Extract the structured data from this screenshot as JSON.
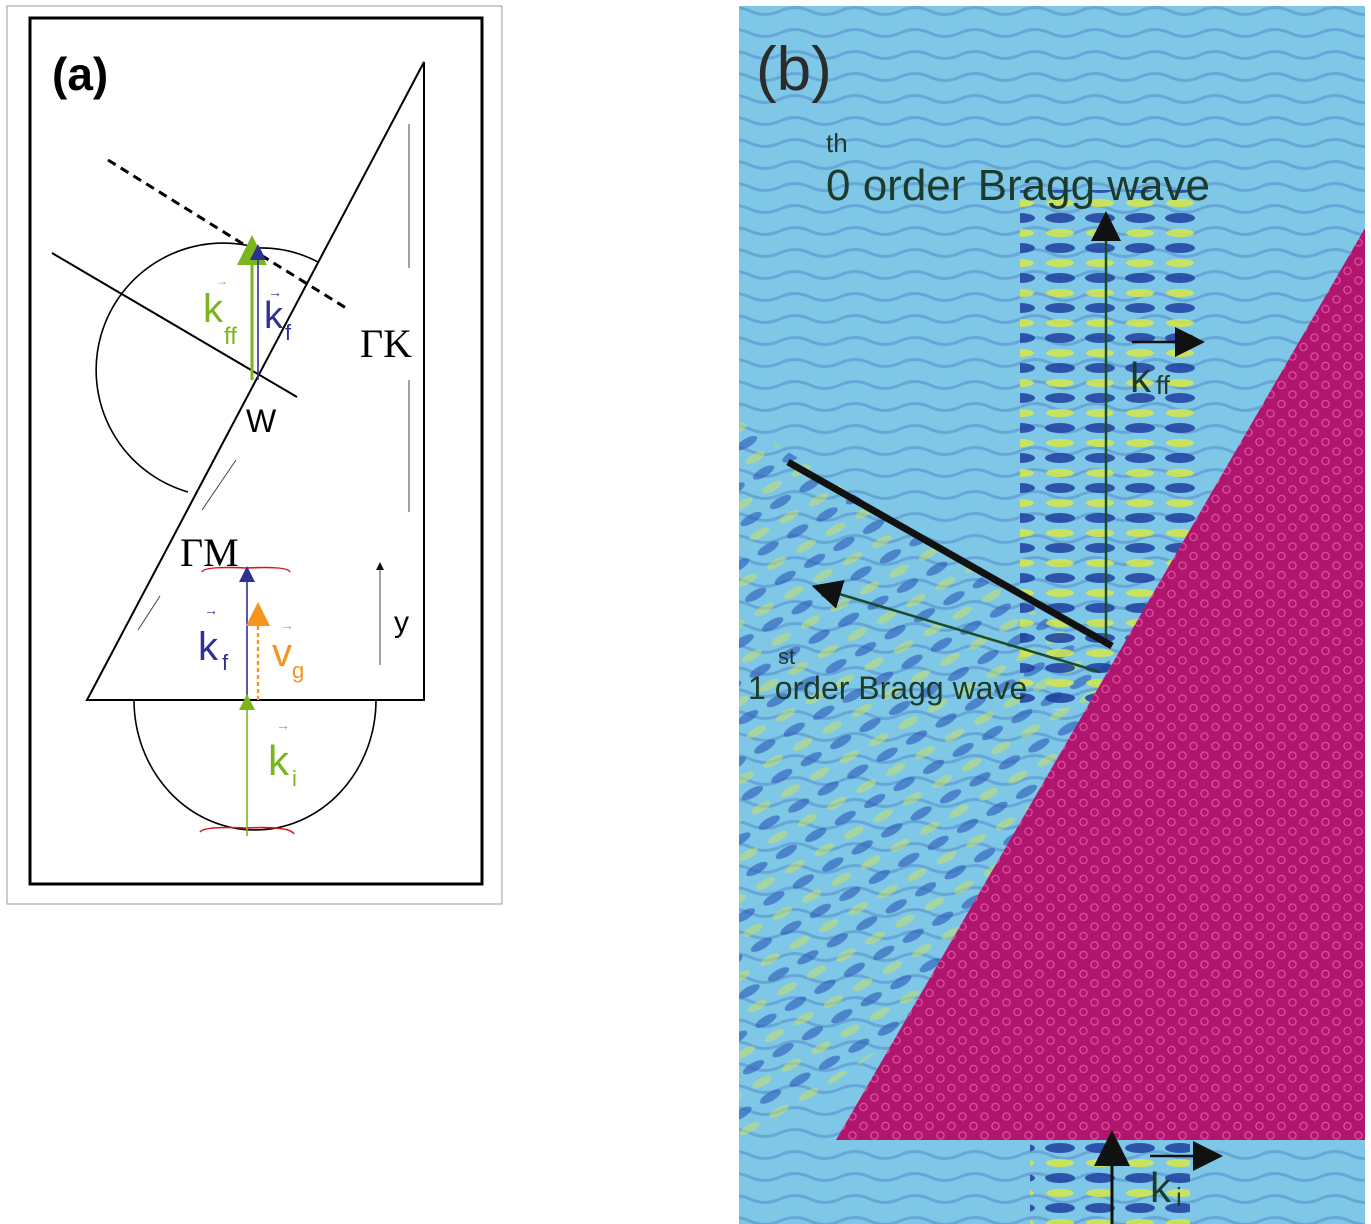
{
  "panel_a": {
    "tag": "(a)",
    "labels": {
      "kff": "k",
      "kff_sub": "ff",
      "kf_top": "k",
      "kf_top_sub": "f",
      "gamma_k": "ΓK",
      "w": "W",
      "gamma_m": "ΓM",
      "kf_bottom": "k",
      "kf_bottom_sub": "f",
      "vg": "v",
      "vg_sub": "g",
      "y": "y",
      "ki": "k",
      "ki_sub": "i"
    },
    "colors": {
      "green": "#7ab51d",
      "blue": "#2e3192",
      "orange": "#f7941d",
      "red": "#d7191c",
      "black": "#000000"
    }
  },
  "panel_b": {
    "tag": "(b)",
    "labels": {
      "zeroth_sup": "th",
      "zeroth": "0 order Bragg wave",
      "first_sup": "st",
      "first": "1 order Bragg wave",
      "kff": "k",
      "kff_sub": "ff",
      "ki": "k",
      "ki_sub": "i"
    },
    "colors": {
      "field_bg": "#7ec7e6",
      "crystal": "#b0166e",
      "wave_dark": "#1f3fa0",
      "wave_bright": "#d6e84a",
      "arrow": "#1d4a2c"
    }
  }
}
